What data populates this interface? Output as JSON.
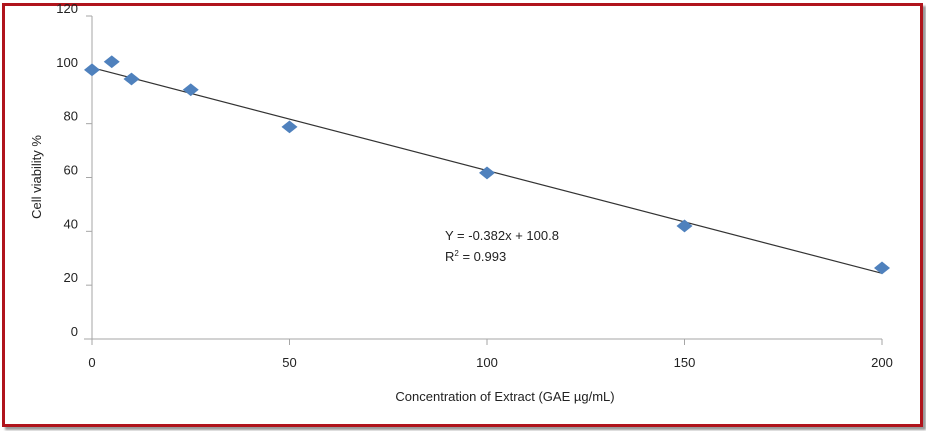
{
  "chart_data": {
    "type": "scatter",
    "title": "",
    "xlabel": "Concentration of Extract (GAE µg/mL)",
    "ylabel": "Cell viability %",
    "xlim": [
      0,
      200
    ],
    "ylim": [
      0,
      120
    ],
    "xticks": [
      0,
      50,
      100,
      150,
      200
    ],
    "yticks": [
      0,
      20,
      40,
      60,
      80,
      100,
      120
    ],
    "grid": false,
    "series": [
      {
        "name": "Cell viability",
        "color": "#4f81bd",
        "marker": "diamond",
        "x": [
          0,
          5,
          10,
          25,
          50,
          100,
          150,
          200
        ],
        "y": [
          100,
          103,
          96.6,
          92.6,
          78.8,
          61.7,
          42,
          26.4
        ]
      }
    ],
    "trendline": {
      "slope": -0.382,
      "intercept": 100.8,
      "color": "#333333"
    },
    "annotations": {
      "equation": "Y = -0.382x + 100.8",
      "r2_prefix": "R",
      "r2_sup": "2",
      "r2_value": " = 0.993"
    }
  }
}
